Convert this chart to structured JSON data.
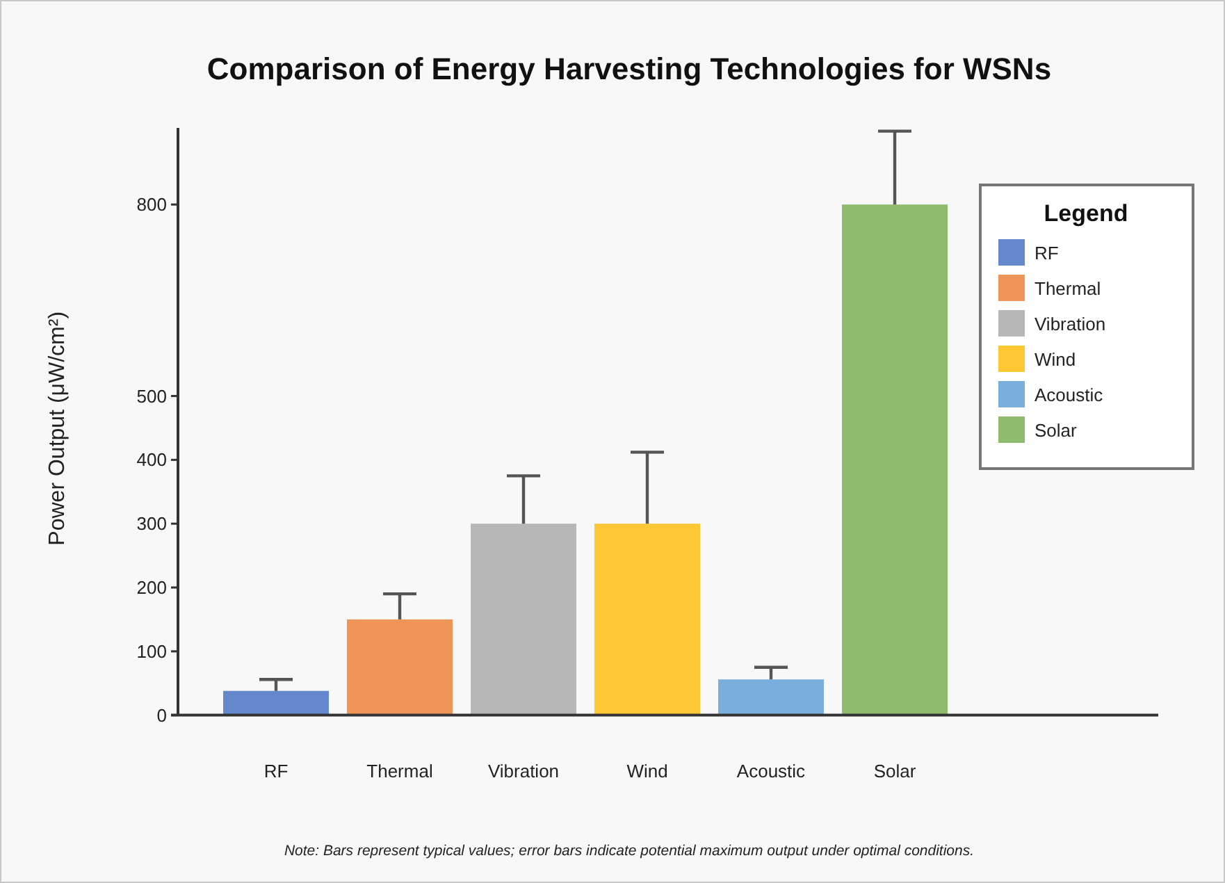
{
  "chart_data": {
    "type": "bar",
    "title": "Comparison of Energy Harvesting Technologies for WSNs",
    "ylabel": "Power Output (μW/cm²)",
    "legend_title": "Legend",
    "categories": [
      "RF",
      "Thermal",
      "Vibration",
      "Wind",
      "Acoustic",
      "Solar"
    ],
    "stacked": true,
    "series": [
      {
        "name": "RF",
        "color": "#6488cb",
        "values": [
          38,
          null,
          null,
          null,
          null,
          null
        ],
        "errors": [
          [
            38,
            56
          ],
          null,
          null,
          null,
          null,
          null
        ]
      },
      {
        "name": "Thermal",
        "color": "#ef9558",
        "values": [
          null,
          150,
          null,
          null,
          null,
          null
        ],
        "errors": [
          null,
          [
            150,
            190
          ],
          null,
          null,
          null,
          null
        ]
      },
      {
        "name": "Vibration",
        "color": "#b7b7b7",
        "values": [
          null,
          null,
          300,
          null,
          null,
          null
        ],
        "errors": [
          null,
          null,
          [
            300,
            375
          ],
          null,
          null,
          null
        ]
      },
      {
        "name": "Wind",
        "color": "#fec834",
        "values": [
          null,
          null,
          null,
          300,
          null,
          null
        ],
        "errors": [
          null,
          null,
          null,
          [
            300,
            412
          ],
          null,
          null
        ]
      },
      {
        "name": "Acoustic",
        "color": "#7aaedd",
        "values": [
          null,
          null,
          null,
          null,
          56,
          null
        ],
        "errors": [
          null,
          null,
          null,
          null,
          [
            56,
            75
          ],
          null
        ]
      },
      {
        "name": "Solar",
        "color": "#8fbb6c",
        "values": [
          null,
          null,
          null,
          null,
          null,
          800
        ],
        "errors": [
          null,
          null,
          null,
          null,
          null,
          [
            800,
            915
          ]
        ]
      }
    ],
    "ylim": [
      0,
      920
    ],
    "yticks": [
      0,
      100,
      200,
      300,
      400,
      500,
      800
    ],
    "grid": false,
    "legend": "right",
    "annotations": [
      "Note: Bars represent typical values; error bars indicate potential maximum output under optimal conditions."
    ]
  }
}
